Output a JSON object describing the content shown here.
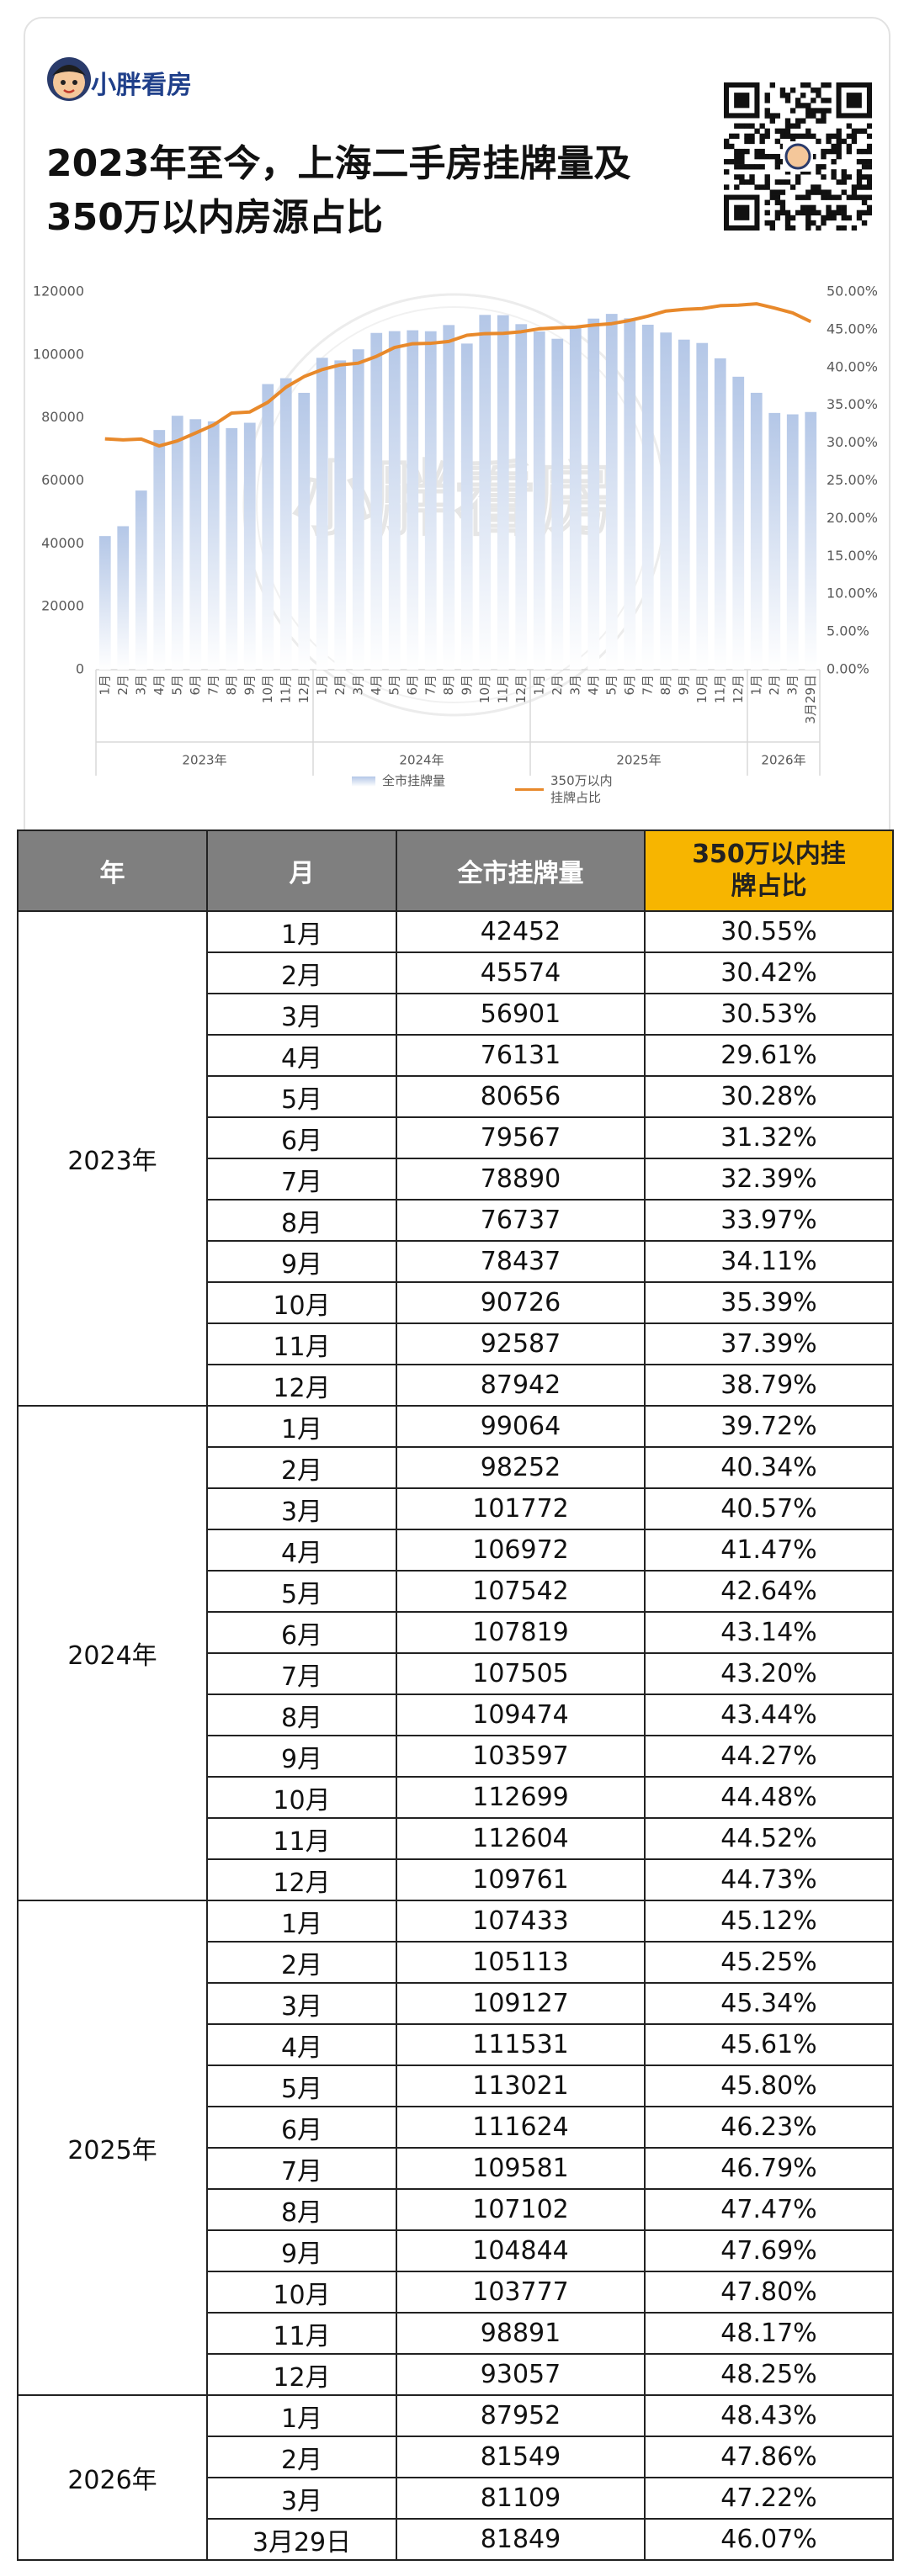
{
  "header": {
    "brand": "小胖看房",
    "title_lines": [
      "2023年至今，上海二手房挂牌量及",
      "350万以内房源占比"
    ]
  },
  "chart_data": {
    "type": "bar_line",
    "categories": [
      "1月",
      "2月",
      "3月",
      "4月",
      "5月",
      "6月",
      "7月",
      "8月",
      "9月",
      "10月",
      "11月",
      "12月",
      "1月",
      "2月",
      "3月",
      "4月",
      "5月",
      "6月",
      "7月",
      "8月",
      "9月",
      "10月",
      "11月",
      "12月",
      "1月",
      "2月",
      "3月",
      "4月",
      "5月",
      "6月",
      "7月",
      "8月",
      "9月",
      "10月",
      "11月",
      "12月",
      "1月",
      "2月",
      "3月",
      "3月29日"
    ],
    "group_labels": [
      "2023年",
      "2024年",
      "2025年",
      "2026年"
    ],
    "series": [
      {
        "name": "全市挂牌量",
        "type": "bar",
        "color": "#b4c7e7",
        "values": [
          42452,
          45574,
          56901,
          76131,
          80656,
          79567,
          78890,
          76737,
          78437,
          90726,
          92587,
          87942,
          99064,
          98252,
          101772,
          106972,
          107542,
          107819,
          107505,
          109474,
          103597,
          112699,
          112604,
          109761,
          107433,
          105113,
          109127,
          111531,
          113021,
          111624,
          109581,
          107102,
          104844,
          103777,
          98891,
          93057,
          87952,
          81549,
          81109,
          81849
        ]
      },
      {
        "name": "350万以内挂牌占比",
        "type": "line",
        "axis": "y2",
        "color": "#e8892b",
        "values": [
          30.55,
          30.42,
          30.53,
          29.61,
          30.28,
          31.32,
          32.39,
          33.97,
          34.11,
          35.39,
          37.39,
          38.79,
          39.72,
          40.34,
          40.57,
          41.47,
          42.64,
          43.14,
          43.2,
          43.44,
          44.27,
          44.48,
          44.52,
          44.73,
          45.12,
          45.25,
          45.34,
          45.61,
          45.8,
          46.23,
          46.79,
          47.47,
          47.69,
          47.8,
          48.17,
          48.25,
          48.43,
          47.86,
          47.22,
          46.07
        ]
      }
    ],
    "ylim": [
      0,
      120000
    ],
    "yticks": [
      0,
      20000,
      40000,
      60000,
      80000,
      100000,
      120000
    ],
    "y2lim": [
      0,
      50
    ],
    "y2ticks": [
      {
        "value": 0,
        "label": "0.00%"
      },
      {
        "value": 5,
        "label": "5.00%"
      },
      {
        "value": 10,
        "label": "10.00%"
      },
      {
        "value": 15,
        "label": "15.00%"
      },
      {
        "value": 20,
        "label": "20.00%"
      },
      {
        "value": 25,
        "label": "25.00%"
      },
      {
        "value": 30,
        "label": "30.00%"
      },
      {
        "value": 35,
        "label": "35.00%"
      },
      {
        "value": 40,
        "label": "40.00%"
      },
      {
        "value": 45,
        "label": "45.00%"
      },
      {
        "value": 50,
        "label": "50.00%"
      }
    ],
    "legend": "bottom"
  },
  "table": {
    "columns": [
      "年",
      "月",
      "全市挂牌量",
      "350万以内挂牌占比"
    ],
    "groups": [
      {
        "year": "2023年",
        "rows": [
          [
            "1月",
            42452,
            "30.55%"
          ],
          [
            "2月",
            45574,
            "30.42%"
          ],
          [
            "3月",
            56901,
            "30.53%"
          ],
          [
            "4月",
            76131,
            "29.61%"
          ],
          [
            "5月",
            80656,
            "30.28%"
          ],
          [
            "6月",
            79567,
            "31.32%"
          ],
          [
            "7月",
            78890,
            "32.39%"
          ],
          [
            "8月",
            76737,
            "33.97%"
          ],
          [
            "9月",
            78437,
            "34.11%"
          ],
          [
            "10月",
            90726,
            "35.39%"
          ],
          [
            "11月",
            92587,
            "37.39%"
          ],
          [
            "12月",
            87942,
            "38.79%"
          ]
        ]
      },
      {
        "year": "2024年",
        "rows": [
          [
            "1月",
            99064,
            "39.72%"
          ],
          [
            "2月",
            98252,
            "40.34%"
          ],
          [
            "3月",
            101772,
            "40.57%"
          ],
          [
            "4月",
            106972,
            "41.47%"
          ],
          [
            "5月",
            107542,
            "42.64%"
          ],
          [
            "6月",
            107819,
            "43.14%"
          ],
          [
            "7月",
            107505,
            "43.20%"
          ],
          [
            "8月",
            109474,
            "43.44%"
          ],
          [
            "9月",
            103597,
            "44.27%"
          ],
          [
            "10月",
            112699,
            "44.48%"
          ],
          [
            "11月",
            112604,
            "44.52%"
          ],
          [
            "12月",
            109761,
            "44.73%"
          ]
        ]
      },
      {
        "year": "2025年",
        "rows": [
          [
            "1月",
            107433,
            "45.12%"
          ],
          [
            "2月",
            105113,
            "45.25%"
          ],
          [
            "3月",
            109127,
            "45.34%"
          ],
          [
            "4月",
            111531,
            "45.61%"
          ],
          [
            "5月",
            113021,
            "45.80%"
          ],
          [
            "6月",
            111624,
            "46.23%"
          ],
          [
            "7月",
            109581,
            "46.79%"
          ],
          [
            "8月",
            107102,
            "47.47%"
          ],
          [
            "9月",
            104844,
            "47.69%"
          ],
          [
            "10月",
            103777,
            "47.80%"
          ],
          [
            "11月",
            98891,
            "48.17%"
          ],
          [
            "12月",
            93057,
            "48.25%"
          ]
        ]
      },
      {
        "year": "2026年",
        "rows": [
          [
            "1月",
            87952,
            "48.43%"
          ],
          [
            "2月",
            81549,
            "47.86%"
          ],
          [
            "3月",
            81109,
            "47.22%"
          ],
          [
            "3月29日",
            81849,
            "46.07%"
          ]
        ]
      }
    ]
  }
}
